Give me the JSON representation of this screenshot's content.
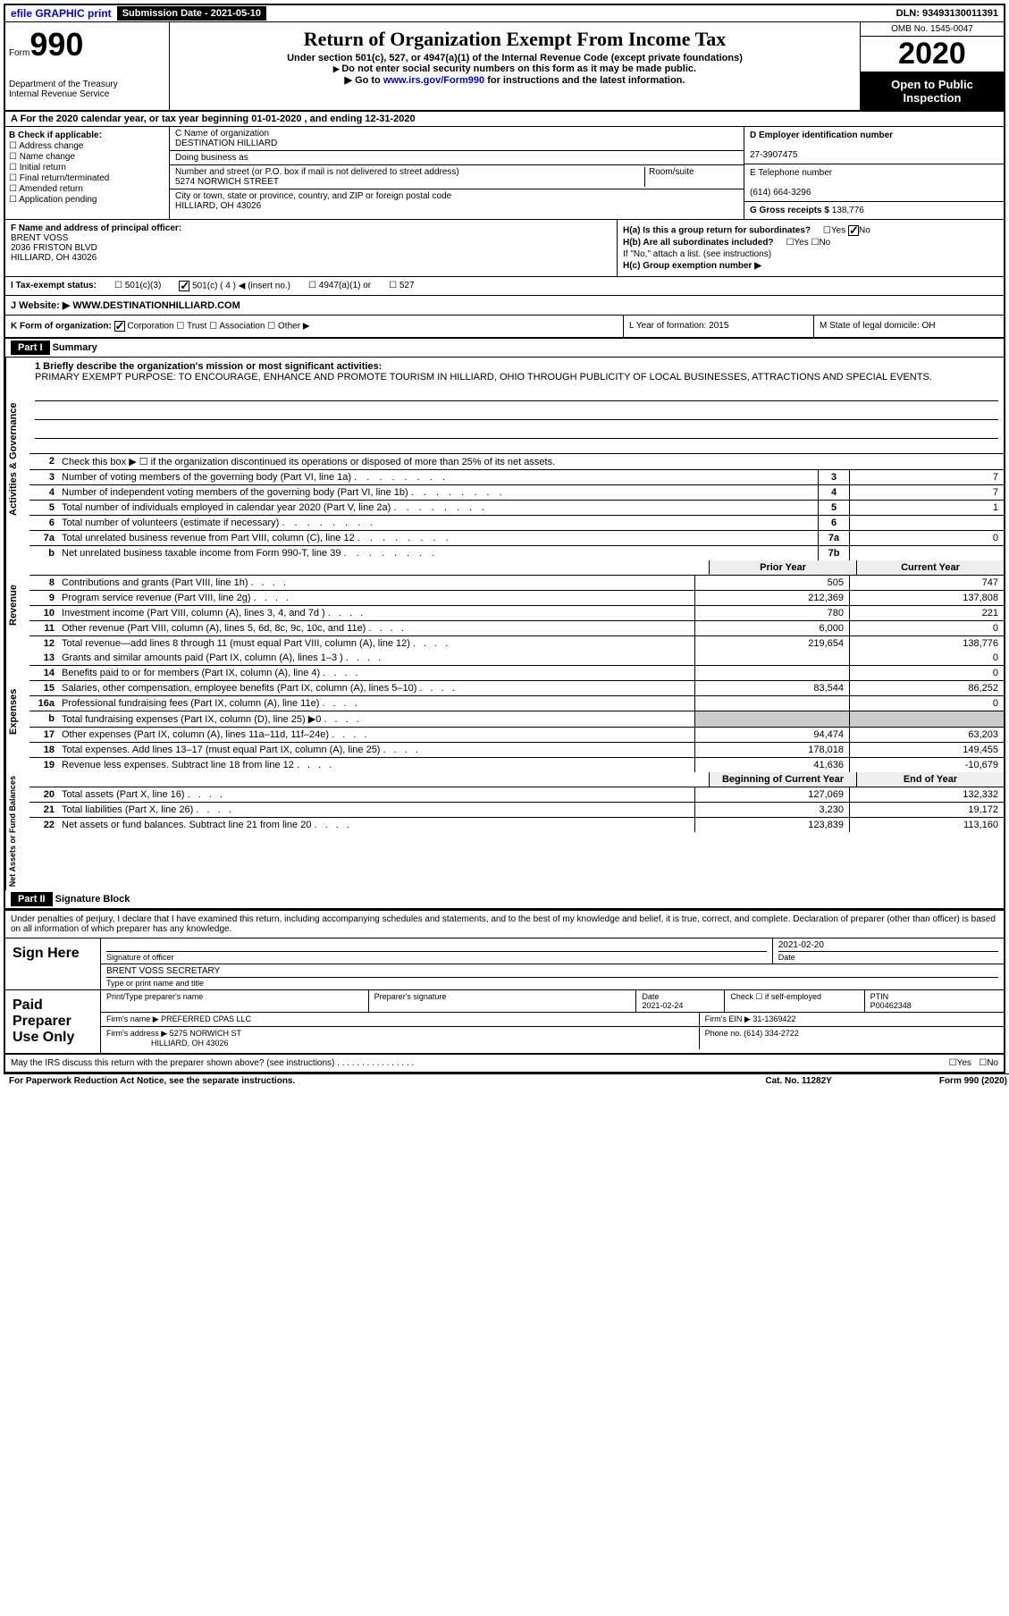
{
  "topbar": {
    "efile": "efile GRAPHIC print",
    "submission_label": "Submission Date - 2021-05-10",
    "dln": "DLN: 93493130011391"
  },
  "header": {
    "form_prefix": "Form",
    "form_number": "990",
    "dept": "Department of the Treasury",
    "irs": "Internal Revenue Service",
    "title": "Return of Organization Exempt From Income Tax",
    "subtitle": "Under section 501(c), 527, or 4947(a)(1) of the Internal Revenue Code (except private foundations)",
    "note1": "Do not enter social security numbers on this form as it may be made public.",
    "note2_prefix": "Go to ",
    "note2_link": "www.irs.gov/Form990",
    "note2_suffix": " for instructions and the latest information.",
    "omb": "OMB No. 1545-0047",
    "year": "2020",
    "open": "Open to Public Inspection"
  },
  "rowA": "For the 2020 calendar year, or tax year beginning 01-01-2020   , and ending 12-31-2020",
  "B": {
    "label": "B Check if applicable:",
    "items": [
      "Address change",
      "Name change",
      "Initial return",
      "Final return/terminated",
      "Amended return",
      "Application pending"
    ]
  },
  "C": {
    "name_label": "C Name of organization",
    "name": "DESTINATION HILLIARD",
    "dba_label": "Doing business as",
    "addr_label": "Number and street (or P.O. box if mail is not delivered to street address)",
    "room_label": "Room/suite",
    "addr": "5274 NORWICH STREET",
    "city_label": "City or town, state or province, country, and ZIP or foreign postal code",
    "city": "HILLIARD, OH  43026"
  },
  "D": {
    "label": "D Employer identification number",
    "value": "27-3907475"
  },
  "E": {
    "label": "E Telephone number",
    "value": "(614) 664-3296"
  },
  "G": {
    "label": "G Gross receipts $",
    "value": "138,776"
  },
  "F": {
    "label": "F  Name and address of principal officer:",
    "name": "BRENT VOSS",
    "addr1": "2036 FRISTON BLVD",
    "addr2": "HILLIARD, OH  43026"
  },
  "H": {
    "a": "H(a)  Is this a group return for subordinates?",
    "a_yes": "Yes",
    "a_no": "No",
    "b": "H(b)  Are all subordinates included?",
    "b_note": "If \"No,\" attach a list. (see instructions)",
    "c": "H(c)  Group exemption number ▶"
  },
  "I": {
    "label": "I  Tax-exempt status:",
    "opts": [
      "501(c)(3)",
      "501(c) ( 4 ) ◀ (insert no.)",
      "4947(a)(1) or",
      "527"
    ]
  },
  "J": {
    "label": "J   Website: ▶",
    "value": "WWW.DESTINATIONHILLIARD.COM"
  },
  "K": {
    "label": "K Form of organization:",
    "opts": [
      "Corporation",
      "Trust",
      "Association",
      "Other ▶"
    ],
    "L": "L Year of formation: 2015",
    "M": "M State of legal domicile: OH"
  },
  "part1": {
    "tag": "Part I",
    "title": "Summary"
  },
  "mission": {
    "label": "1  Briefly describe the organization's mission or most significant activities:",
    "text": "PRIMARY EXEMPT PURPOSE: TO ENCOURAGE, ENHANCE AND PROMOTE TOURISM IN HILLIARD, OHIO THROUGH PUBLICITY OF LOCAL BUSINESSES, ATTRACTIONS AND SPECIAL EVENTS."
  },
  "line2": "Check this box ▶ ☐  if the organization discontinued its operations or disposed of more than 25% of its net assets.",
  "govlines": [
    {
      "n": "3",
      "d": "Number of voting members of the governing body (Part VI, line 1a)",
      "b": "3",
      "v": "7"
    },
    {
      "n": "4",
      "d": "Number of independent voting members of the governing body (Part VI, line 1b)",
      "b": "4",
      "v": "7"
    },
    {
      "n": "5",
      "d": "Total number of individuals employed in calendar year 2020 (Part V, line 2a)",
      "b": "5",
      "v": "1"
    },
    {
      "n": "6",
      "d": "Total number of volunteers (estimate if necessary)",
      "b": "6",
      "v": ""
    },
    {
      "n": "7a",
      "d": "Total unrelated business revenue from Part VIII, column (C), line 12",
      "b": "7a",
      "v": "0"
    },
    {
      "n": "b",
      "d": "Net unrelated business taxable income from Form 990-T, line 39",
      "b": "7b",
      "v": ""
    }
  ],
  "yearhdr": {
    "prior": "Prior Year",
    "current": "Current Year"
  },
  "revenue": [
    {
      "n": "8",
      "d": "Contributions and grants (Part VIII, line 1h)",
      "p": "505",
      "c": "747"
    },
    {
      "n": "9",
      "d": "Program service revenue (Part VIII, line 2g)",
      "p": "212,369",
      "c": "137,808"
    },
    {
      "n": "10",
      "d": "Investment income (Part VIII, column (A), lines 3, 4, and 7d )",
      "p": "780",
      "c": "221"
    },
    {
      "n": "11",
      "d": "Other revenue (Part VIII, column (A), lines 5, 6d, 8c, 9c, 10c, and 11e)",
      "p": "6,000",
      "c": "0"
    },
    {
      "n": "12",
      "d": "Total revenue—add lines 8 through 11 (must equal Part VIII, column (A), line 12)",
      "p": "219,654",
      "c": "138,776"
    }
  ],
  "expenses": [
    {
      "n": "13",
      "d": "Grants and similar amounts paid (Part IX, column (A), lines 1–3 )",
      "p": "",
      "c": "0"
    },
    {
      "n": "14",
      "d": "Benefits paid to or for members (Part IX, column (A), line 4)",
      "p": "",
      "c": "0"
    },
    {
      "n": "15",
      "d": "Salaries, other compensation, employee benefits (Part IX, column (A), lines 5–10)",
      "p": "83,544",
      "c": "86,252"
    },
    {
      "n": "16a",
      "d": "Professional fundraising fees (Part IX, column (A), line 11e)",
      "p": "",
      "c": "0"
    },
    {
      "n": "b",
      "d": "Total fundraising expenses (Part IX, column (D), line 25) ▶0",
      "p": "GRAY",
      "c": "GRAY"
    },
    {
      "n": "17",
      "d": "Other expenses (Part IX, column (A), lines 11a–11d, 11f–24e)",
      "p": "94,474",
      "c": "63,203"
    },
    {
      "n": "18",
      "d": "Total expenses. Add lines 13–17 (must equal Part IX, column (A), line 25)",
      "p": "178,018",
      "c": "149,455"
    },
    {
      "n": "19",
      "d": "Revenue less expenses. Subtract line 18 from line 12",
      "p": "41,636",
      "c": "-10,679"
    }
  ],
  "nethdr": {
    "beg": "Beginning of Current Year",
    "end": "End of Year"
  },
  "netassets": [
    {
      "n": "20",
      "d": "Total assets (Part X, line 16)",
      "p": "127,069",
      "c": "132,332"
    },
    {
      "n": "21",
      "d": "Total liabilities (Part X, line 26)",
      "p": "3,230",
      "c": "19,172"
    },
    {
      "n": "22",
      "d": "Net assets or fund balances. Subtract line 21 from line 20",
      "p": "123,839",
      "c": "113,160"
    }
  ],
  "part2": {
    "tag": "Part II",
    "title": "Signature Block"
  },
  "sig": {
    "decl": "Under penalties of perjury, I declare that I have examined this return, including accompanying schedules and statements, and to the best of my knowledge and belief, it is true, correct, and complete. Declaration of preparer (other than officer) is based on all information of which preparer has any knowledge.",
    "sign_here": "Sign Here",
    "sig_officer": "Signature of officer",
    "date": "2021-02-20",
    "date_label": "Date",
    "name": "BRENT VOSS SECRETARY",
    "name_label": "Type or print name and title",
    "paid": "Paid Preparer Use Only",
    "prep_name_label": "Print/Type preparer's name",
    "prep_sig_label": "Preparer's signature",
    "prep_date": "2021-02-24",
    "check_label": "Check ☐ if self-employed",
    "ptin_label": "PTIN",
    "ptin": "P00462348",
    "firm_name_label": "Firm's name    ▶",
    "firm_name": "PREFERRED CPAS LLC",
    "firm_ein_label": "Firm's EIN ▶",
    "firm_ein": "31-1369422",
    "firm_addr_label": "Firm's address ▶",
    "firm_addr1": "5275 NORWICH ST",
    "firm_addr2": "HILLIARD, OH  43026",
    "phone_label": "Phone no.",
    "phone": "(614) 334-2722"
  },
  "discuss": "May the IRS discuss this return with the preparer shown above? (see instructions)",
  "footer": {
    "left": "For Paperwork Reduction Act Notice, see the separate instructions.",
    "mid": "Cat. No. 11282Y",
    "right": "Form 990 (2020)"
  }
}
